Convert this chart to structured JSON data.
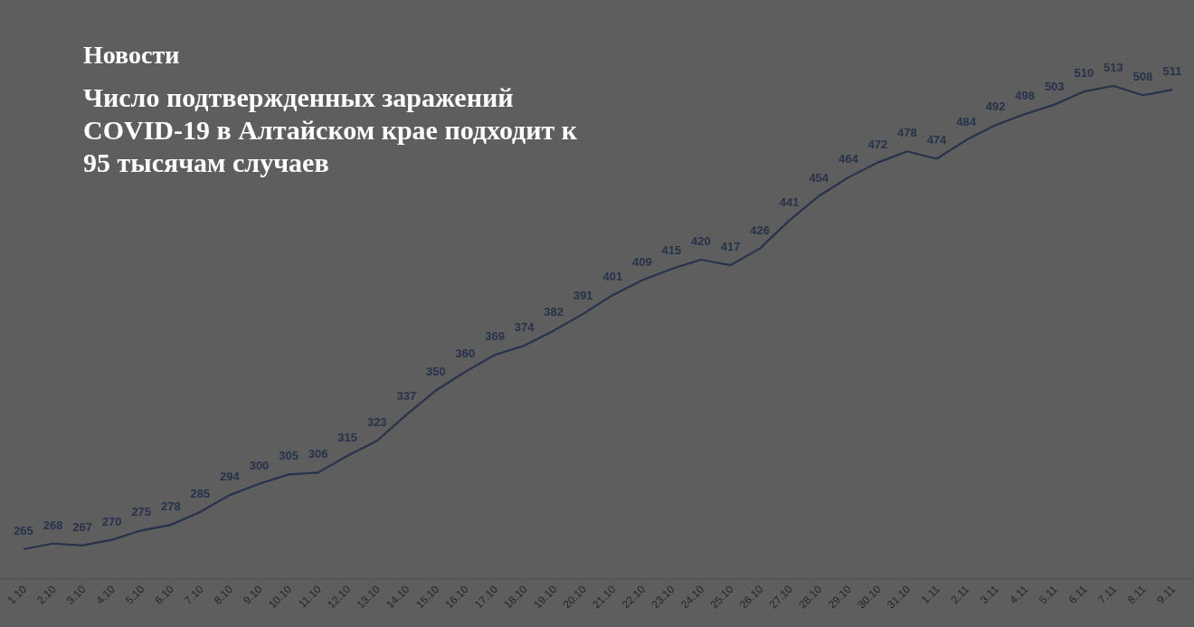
{
  "chart_data": {
    "type": "line",
    "title": "Число подтвержденных заражений COVID-19 в Алтайском крае подходит к 95 тысячам случаев",
    "subtitle": "Новости",
    "categories": [
      "1.10",
      "2.10",
      "3.10",
      "4.10",
      "5.10",
      "6.10",
      "7.10",
      "8.10",
      "9.10",
      "10.10",
      "11.10",
      "12.10",
      "13.10",
      "14.10",
      "15.10",
      "16.10",
      "17.10",
      "18.10",
      "19.10",
      "20.10",
      "21.10",
      "22.10",
      "23.10",
      "24.10",
      "25.10",
      "26.10",
      "27.10",
      "28.10",
      "29.10",
      "30.10",
      "31.10",
      "1.11",
      "2.11",
      "3.11",
      "4.11",
      "5.11",
      "6.11",
      "7.11",
      "8.11",
      "9.11"
    ],
    "series": [
      {
        "color": "#26334a",
        "values": [
          265,
          268,
          267,
          270,
          275,
          278,
          285,
          294,
          300,
          305,
          306,
          315,
          323,
          337,
          350,
          360,
          369,
          374,
          382,
          391,
          401,
          409,
          415,
          420,
          417,
          426,
          441,
          454,
          464,
          472,
          478,
          474,
          484,
          492,
          498,
          503,
          510,
          513,
          508,
          511
        ]
      }
    ],
    "ylim": [
      249,
      559
    ],
    "data_labels": true
  }
}
